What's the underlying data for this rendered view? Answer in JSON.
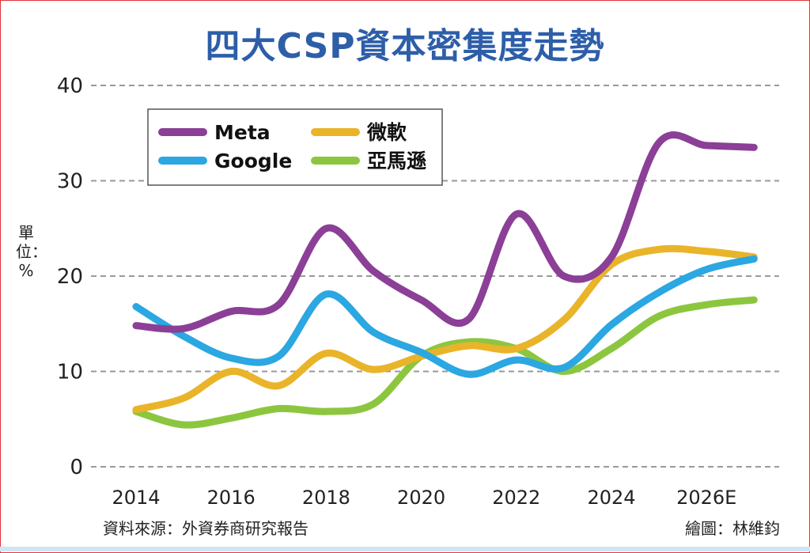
{
  "chart_data": {
    "type": "line",
    "title": "四大CSP資本密集度走勢",
    "ylabel": "單位：%",
    "xlabel": "",
    "ylim": [
      0,
      40
    ],
    "yticks": [
      0,
      10,
      20,
      30,
      40
    ],
    "grid": true,
    "legend_position": "top-left",
    "xticks": [
      {
        "x": 2014,
        "label": "2014"
      },
      {
        "x": 2016,
        "label": "2016"
      },
      {
        "x": 2018,
        "label": "2018"
      },
      {
        "x": 2020,
        "label": "2020"
      },
      {
        "x": 2022,
        "label": "2022"
      },
      {
        "x": 2024,
        "label": "2024"
      },
      {
        "x": 2026,
        "label": "2026E"
      }
    ],
    "x": [
      2014,
      2015,
      2016,
      2017,
      2018,
      2019,
      2020,
      2021,
      2022,
      2023,
      2024,
      2025,
      2026,
      2027
    ],
    "series": [
      {
        "name": "Meta",
        "color": "#8b3f96",
        "values": [
          14.8,
          14.5,
          16.3,
          17.0,
          25.0,
          20.5,
          17.5,
          15.5,
          26.5,
          20.0,
          22.0,
          34.0,
          33.7,
          33.5
        ]
      },
      {
        "name": "微軟",
        "color": "#e9b429",
        "values": [
          6.0,
          7.2,
          10.0,
          8.5,
          11.9,
          10.2,
          11.6,
          12.7,
          12.4,
          15.4,
          21.2,
          22.8,
          22.6,
          22.0
        ]
      },
      {
        "name": "Google",
        "color": "#2ba7e1",
        "values": [
          16.8,
          13.7,
          11.4,
          11.6,
          18.1,
          14.1,
          12.0,
          9.7,
          11.2,
          10.4,
          14.9,
          18.3,
          20.7,
          21.8
        ]
      },
      {
        "name": "亞馬遜",
        "color": "#8cc63f",
        "values": [
          5.8,
          4.4,
          5.1,
          6.1,
          5.8,
          6.6,
          11.6,
          13.1,
          12.4,
          10.0,
          12.4,
          15.8,
          17.0,
          17.5
        ]
      }
    ]
  },
  "source": "資料來源：外資券商研究報告",
  "credit": "繪圖：林維鈞"
}
